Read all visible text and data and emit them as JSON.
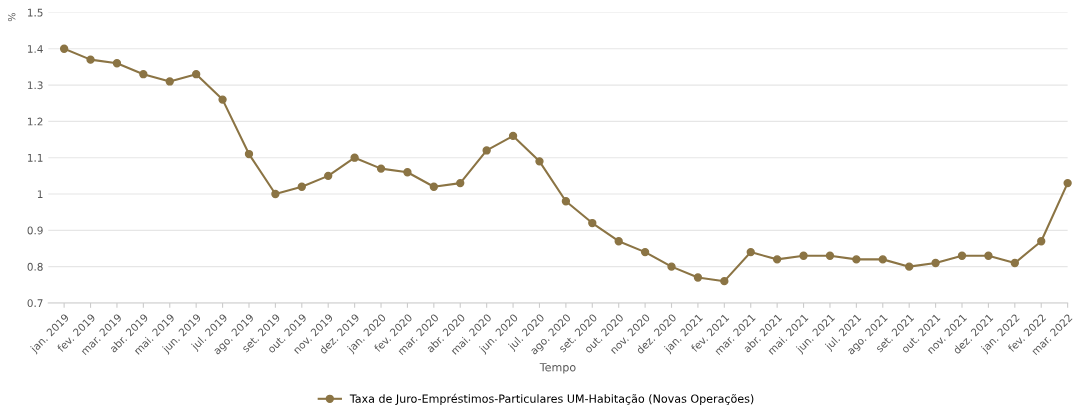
{
  "chart_data": {
    "type": "line",
    "xlabel": "Tempo",
    "ylabel": "%",
    "categories": [
      "jan. 2019",
      "fev. 2019",
      "mar. 2019",
      "abr. 2019",
      "mai. 2019",
      "jun. 2019",
      "jul. 2019",
      "ago. 2019",
      "set. 2019",
      "out. 2019",
      "nov. 2019",
      "dez. 2019",
      "jan. 2020",
      "fev. 2020",
      "mar. 2020",
      "abr. 2020",
      "mai. 2020",
      "jun. 2020",
      "jul. 2020",
      "ago. 2020",
      "set. 2020",
      "out. 2020",
      "nov. 2020",
      "dez. 2020",
      "jan. 2021",
      "fev. 2021",
      "mar. 2021",
      "abr. 2021",
      "mai. 2021",
      "jun. 2021",
      "jul. 2021",
      "ago. 2021",
      "set. 2021",
      "out. 2021",
      "nov. 2021",
      "dez. 2021",
      "jan. 2022",
      "fev. 2022",
      "mar. 2022"
    ],
    "series": [
      {
        "name": "Taxa de Juro-Empréstimos-Particulares UM-Habitação (Novas Operações)",
        "color": "#8b7444",
        "values": [
          1.4,
          1.37,
          1.36,
          1.33,
          1.31,
          1.33,
          1.26,
          1.11,
          1.0,
          1.02,
          1.05,
          1.1,
          1.07,
          1.06,
          1.02,
          1.03,
          1.12,
          1.16,
          1.09,
          0.98,
          0.92,
          0.87,
          0.84,
          0.8,
          0.77,
          0.76,
          0.84,
          0.82,
          0.83,
          0.83,
          0.82,
          0.82,
          0.8,
          0.81,
          0.83,
          0.83,
          0.81,
          0.87,
          1.03
        ]
      }
    ],
    "ylim": [
      0.7,
      1.5
    ],
    "yticks": [
      0.7,
      0.8,
      0.9,
      1,
      1.1,
      1.2,
      1.3,
      1.4,
      1.5
    ],
    "grid": "y",
    "legend": "bottom",
    "marker": "circle",
    "line_style": "solid"
  }
}
